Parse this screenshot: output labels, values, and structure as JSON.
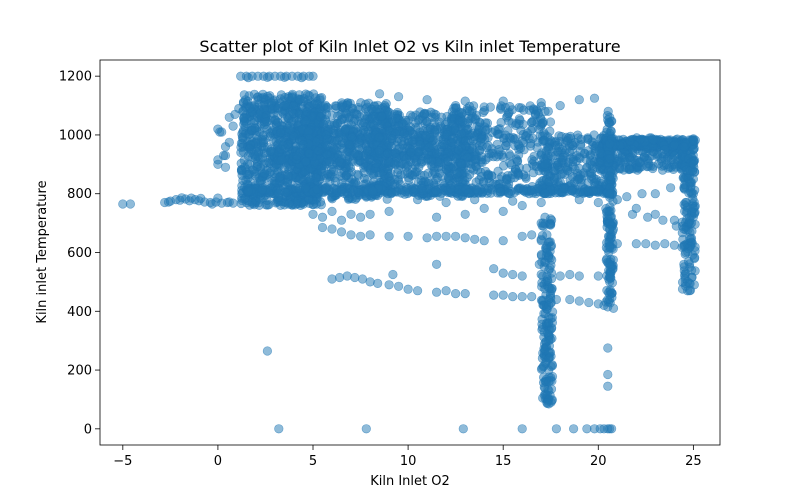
{
  "chart_data": {
    "type": "scatter",
    "title": "Scatter plot of Kiln Inlet O2 vs Kiln inlet Temperature",
    "xlabel": "Kiln Inlet O2",
    "ylabel": "Kiln inlet Temperature",
    "xlim": [
      -6.2,
      26.4
    ],
    "ylim": [
      -55,
      1255
    ],
    "xticks": [
      -5,
      0,
      5,
      10,
      15,
      20,
      25
    ],
    "yticks": [
      0,
      200,
      400,
      600,
      800,
      1000,
      1200
    ],
    "grid": false,
    "legend": "none",
    "marker_color": "#1f77b4",
    "marker_alpha": 0.5,
    "series": [
      {
        "points": [
          [
            -5.0,
            765
          ],
          [
            -4.6,
            765
          ],
          [
            -2.8,
            770
          ],
          [
            -2.5,
            775
          ],
          [
            -2.2,
            780
          ],
          [
            -2.0,
            778
          ],
          [
            -1.7,
            782
          ],
          [
            -1.4,
            785
          ],
          [
            -1.2,
            780
          ],
          [
            -1.0,
            776
          ],
          [
            -0.7,
            772
          ],
          [
            -0.4,
            770
          ],
          [
            -0.1,
            772
          ],
          [
            0.2,
            768
          ],
          [
            0.5,
            770
          ],
          [
            0.8,
            768
          ],
          [
            -2.6,
            772
          ],
          [
            -1.9,
            786
          ],
          [
            -1.5,
            776
          ],
          [
            -0.9,
            784
          ],
          [
            -0.3,
            765
          ],
          [
            0.6,
            772
          ],
          [
            0.0,
            785
          ],
          [
            0.0,
            900
          ],
          [
            0.0,
            915
          ],
          [
            0.1,
            1010
          ],
          [
            0.0,
            1020
          ],
          [
            0.4,
            960
          ],
          [
            0.6,
            975
          ],
          [
            0.8,
            1030
          ],
          [
            0.6,
            1060
          ],
          [
            0.9,
            1070
          ],
          [
            1.1,
            1090
          ],
          [
            0.4,
            930
          ],
          [
            1.2,
            1200
          ],
          [
            1.5,
            1200
          ],
          [
            1.8,
            1200
          ],
          [
            2.1,
            1200
          ],
          [
            2.4,
            1200
          ],
          [
            2.7,
            1200
          ],
          [
            3.0,
            1200
          ],
          [
            3.3,
            1200
          ],
          [
            3.6,
            1200
          ],
          [
            3.9,
            1200
          ],
          [
            4.2,
            1200
          ],
          [
            4.5,
            1200
          ],
          [
            4.8,
            1200
          ],
          [
            5.0,
            1200
          ],
          [
            1.6,
            1195
          ],
          [
            2.6,
            1196
          ],
          [
            3.5,
            1196
          ],
          [
            4.4,
            1195
          ],
          [
            8.5,
            1140
          ],
          [
            9.5,
            1130
          ],
          [
            11.0,
            1120
          ],
          [
            13.0,
            1115
          ],
          [
            15.0,
            1115
          ],
          [
            17.0,
            1110
          ],
          [
            19.0,
            1120
          ],
          [
            19.8,
            1125
          ],
          [
            12.5,
            1100
          ],
          [
            14.0,
            1095
          ],
          [
            18.0,
            1100
          ],
          [
            10.5,
            780
          ],
          [
            12.0,
            770
          ],
          [
            13.5,
            780
          ],
          [
            15.5,
            775
          ],
          [
            17.0,
            770
          ],
          [
            19.0,
            780
          ],
          [
            20.0,
            770
          ],
          [
            21.5,
            790
          ],
          [
            22.3,
            800
          ],
          [
            23.0,
            800
          ],
          [
            23.8,
            820
          ],
          [
            24.5,
            820
          ],
          [
            21.8,
            730
          ],
          [
            22.6,
            720
          ],
          [
            23.4,
            710
          ],
          [
            24.1,
            690
          ],
          [
            21.0,
            780
          ],
          [
            22.0,
            750
          ],
          [
            23.0,
            730
          ],
          [
            24.0,
            710
          ],
          [
            24.5,
            680
          ],
          [
            21.0,
            630
          ],
          [
            22.0,
            630
          ],
          [
            22.5,
            630
          ],
          [
            23.0,
            625
          ],
          [
            23.5,
            630
          ],
          [
            24.0,
            625
          ],
          [
            24.5,
            620
          ],
          [
            21.8,
            950
          ],
          [
            22.5,
            940
          ],
          [
            23.5,
            950
          ],
          [
            24.0,
            930
          ],
          [
            24.5,
            960
          ],
          [
            5.0,
            730
          ],
          [
            5.5,
            720
          ],
          [
            6.0,
            740
          ],
          [
            6.5,
            710
          ],
          [
            7.0,
            730
          ],
          [
            7.5,
            720
          ],
          [
            8.0,
            730
          ],
          [
            9.0,
            740
          ],
          [
            11.5,
            720
          ],
          [
            13.0,
            730
          ],
          [
            14.0,
            750
          ],
          [
            15.0,
            740
          ],
          [
            16.0,
            760
          ],
          [
            17.0,
            700
          ],
          [
            5.5,
            685
          ],
          [
            6.0,
            680
          ],
          [
            6.5,
            670
          ],
          [
            7.0,
            660
          ],
          [
            7.5,
            655
          ],
          [
            8.0,
            660
          ],
          [
            9.0,
            655
          ],
          [
            10.0,
            655
          ],
          [
            11.0,
            650
          ],
          [
            11.5,
            655
          ],
          [
            12.0,
            655
          ],
          [
            12.5,
            655
          ],
          [
            13.0,
            650
          ],
          [
            13.5,
            645
          ],
          [
            14.0,
            640
          ],
          [
            15.0,
            640
          ],
          [
            16.0,
            655
          ],
          [
            16.5,
            660
          ],
          [
            17.0,
            645
          ],
          [
            6.0,
            510
          ],
          [
            6.4,
            515
          ],
          [
            6.8,
            520
          ],
          [
            7.2,
            515
          ],
          [
            7.6,
            510
          ],
          [
            8.0,
            500
          ],
          [
            8.4,
            495
          ],
          [
            9.0,
            490
          ],
          [
            9.5,
            485
          ],
          [
            10.0,
            475
          ],
          [
            10.5,
            470
          ],
          [
            11.5,
            465
          ],
          [
            12.0,
            470
          ],
          [
            12.5,
            460
          ],
          [
            13.0,
            460
          ],
          [
            14.5,
            455
          ],
          [
            15.0,
            455
          ],
          [
            15.5,
            450
          ],
          [
            16.0,
            450
          ],
          [
            16.5,
            450
          ],
          [
            9.2,
            525
          ],
          [
            11.5,
            560
          ],
          [
            14.5,
            545
          ],
          [
            15.0,
            530
          ],
          [
            15.5,
            525
          ],
          [
            16.0,
            520
          ],
          [
            17.0,
            525
          ],
          [
            18.0,
            520
          ],
          [
            18.5,
            525
          ],
          [
            19.0,
            520
          ],
          [
            20.0,
            520
          ],
          [
            18.5,
            440
          ],
          [
            19.0,
            435
          ],
          [
            19.5,
            430
          ],
          [
            20.0,
            425
          ],
          [
            20.3,
            420
          ],
          [
            20.5,
            415
          ],
          [
            20.8,
            410
          ],
          [
            17.5,
            445
          ],
          [
            17.8,
            440
          ],
          [
            2.6,
            265
          ],
          [
            3.2,
            0
          ],
          [
            7.8,
            0
          ],
          [
            12.9,
            0
          ],
          [
            16.0,
            0
          ],
          [
            17.8,
            0
          ],
          [
            18.7,
            0
          ],
          [
            19.4,
            0
          ],
          [
            19.8,
            0
          ],
          [
            20.1,
            0
          ],
          [
            20.3,
            0
          ],
          [
            20.5,
            0
          ],
          [
            20.6,
            0
          ],
          [
            20.7,
            0
          ],
          [
            20.5,
            275
          ],
          [
            20.5,
            185
          ],
          [
            20.5,
            145
          ],
          [
            17.1,
            700
          ],
          [
            17.0,
            640
          ],
          [
            16.9,
            560
          ],
          [
            17.3,
            520
          ],
          [
            17.4,
            440
          ],
          [
            17.4,
            380
          ],
          [
            17.4,
            320
          ],
          [
            17.4,
            260
          ],
          [
            17.4,
            200
          ],
          [
            17.4,
            160
          ],
          [
            17.4,
            130
          ],
          [
            17.4,
            100
          ],
          [
            17.4,
            85
          ],
          [
            17.3,
            90
          ],
          [
            17.4,
            240
          ],
          [
            17.4,
            300
          ],
          [
            17.4,
            360
          ],
          [
            17.4,
            420
          ],
          [
            17.4,
            480
          ],
          [
            17.4,
            540
          ],
          [
            17.3,
            600
          ],
          [
            17.3,
            660
          ],
          [
            17.2,
            720
          ],
          [
            17.2,
            800
          ],
          [
            17.2,
            900
          ],
          [
            17.2,
            1000
          ],
          [
            17.2,
            1080
          ],
          [
            20.6,
            440
          ],
          [
            20.6,
            500
          ],
          [
            20.6,
            560
          ],
          [
            20.6,
            620
          ],
          [
            20.6,
            680
          ],
          [
            20.6,
            740
          ],
          [
            20.6,
            800
          ],
          [
            20.6,
            860
          ],
          [
            20.6,
            920
          ],
          [
            20.6,
            970
          ],
          [
            20.6,
            1040
          ],
          [
            20.6,
            1060
          ],
          [
            24.8,
            470
          ],
          [
            24.7,
            500
          ],
          [
            24.6,
            530
          ],
          [
            24.5,
            560
          ],
          [
            24.6,
            600
          ],
          [
            24.8,
            650
          ],
          [
            24.9,
            700
          ],
          [
            25.0,
            750
          ],
          [
            25.0,
            800
          ],
          [
            25.0,
            850
          ],
          [
            25.0,
            900
          ],
          [
            25.0,
            950
          ],
          [
            25.0,
            980
          ],
          [
            0.2,
            1010
          ],
          [
            0.3,
            930
          ],
          [
            0.4,
            890
          ]
        ],
        "regions": [
          {
            "x": [
              1.2,
              5.5
            ],
            "y": [
              760,
              1140
            ],
            "n": 800
          },
          {
            "x": [
              4.5,
              9.0
            ],
            "y": [
              780,
              1110
            ],
            "n": 500
          },
          {
            "x": [
              8.0,
              13.0
            ],
            "y": [
              790,
              1080
            ],
            "n": 400
          },
          {
            "x": [
              12.0,
              17.5
            ],
            "y": [
              800,
              1100
            ],
            "n": 350
          },
          {
            "x": [
              17.0,
              20.8
            ],
            "y": [
              800,
              1000
            ],
            "n": 250
          },
          {
            "x": [
              20.0,
              25.1
            ],
            "y": [
              880,
              990
            ],
            "n": 260
          },
          {
            "x": [
              1.5,
              20.8
            ],
            "y": [
              800,
              820
            ],
            "n": 300
          },
          {
            "x": [
              3.0,
              14.0
            ],
            "y": [
              900,
              1020
            ],
            "n": 400
          },
          {
            "x": [
              20.4,
              24.6
            ],
            "y": [
              960,
              985
            ],
            "n": 150
          },
          {
            "x": [
              17.0,
              17.6
            ],
            "y": [
              80,
              720
            ],
            "n": 150
          },
          {
            "x": [
              20.4,
              20.8
            ],
            "y": [
              420,
              1080
            ],
            "n": 150
          },
          {
            "x": [
              24.4,
              25.1
            ],
            "y": [
              460,
              990
            ],
            "n": 150
          }
        ]
      }
    ]
  }
}
